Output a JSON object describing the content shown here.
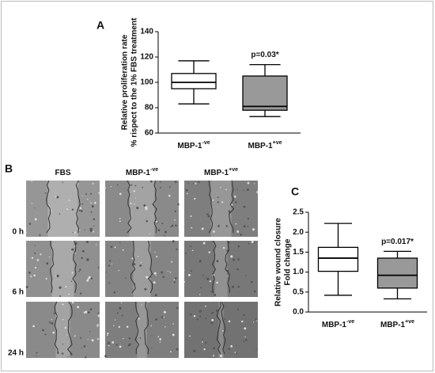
{
  "panel_labels": [
    "A",
    "B",
    "C"
  ],
  "chart_data": [
    {
      "type": "box",
      "y_label": [
        "Relative proliferation rate",
        "% rispect to the 1% FBS treatment"
      ],
      "categories": [
        "MBP-1",
        "MBP-1"
      ],
      "category_superscripts": [
        "-ve",
        "+ve"
      ],
      "boxes": [
        {
          "min": 83,
          "q1": 95,
          "median": 100,
          "q3": 107,
          "max": 117,
          "color": "#ffffff"
        },
        {
          "min": 73,
          "q1": 78,
          "median": 81,
          "q3": 105,
          "max": 114,
          "color": "#999999"
        }
      ],
      "annotations": [
        {
          "text": "p=0.03*",
          "category": 1
        }
      ],
      "ylim": [
        60,
        140
      ],
      "yticks": [
        60,
        80,
        100,
        120,
        140
      ]
    },
    {
      "type": "box",
      "y_label": [
        "Relative wound closure",
        "Fold change"
      ],
      "categories": [
        "MBP-1",
        "MBP-1"
      ],
      "category_superscripts": [
        "-ve",
        "+ve"
      ],
      "boxes": [
        {
          "min": 0.42,
          "q1": 1.02,
          "median": 1.35,
          "q3": 1.62,
          "max": 2.22,
          "color": "#ffffff"
        },
        {
          "min": 0.33,
          "q1": 0.6,
          "median": 0.92,
          "q3": 1.35,
          "max": 1.52,
          "color": "#999999"
        }
      ],
      "annotations": [
        {
          "text": "p=0.017*",
          "category": 1
        }
      ],
      "ylim": [
        0,
        2.5
      ],
      "yticks": [
        {
          "value": 0,
          "label": "0.0"
        },
        0.5,
        {
          "value": 1,
          "label": "1.0"
        },
        1.5,
        {
          "value": 2,
          "label": "2.0"
        },
        2.5
      ]
    }
  ],
  "micrograph_grid": {
    "columns": [
      {
        "text": "FBS"
      },
      {
        "text": "MBP-1",
        "superscript": "-ve"
      },
      {
        "text": "MBP-1",
        "superscript": "+ve"
      }
    ],
    "rows": [
      "0 h",
      "6 h",
      "24 h"
    ]
  }
}
